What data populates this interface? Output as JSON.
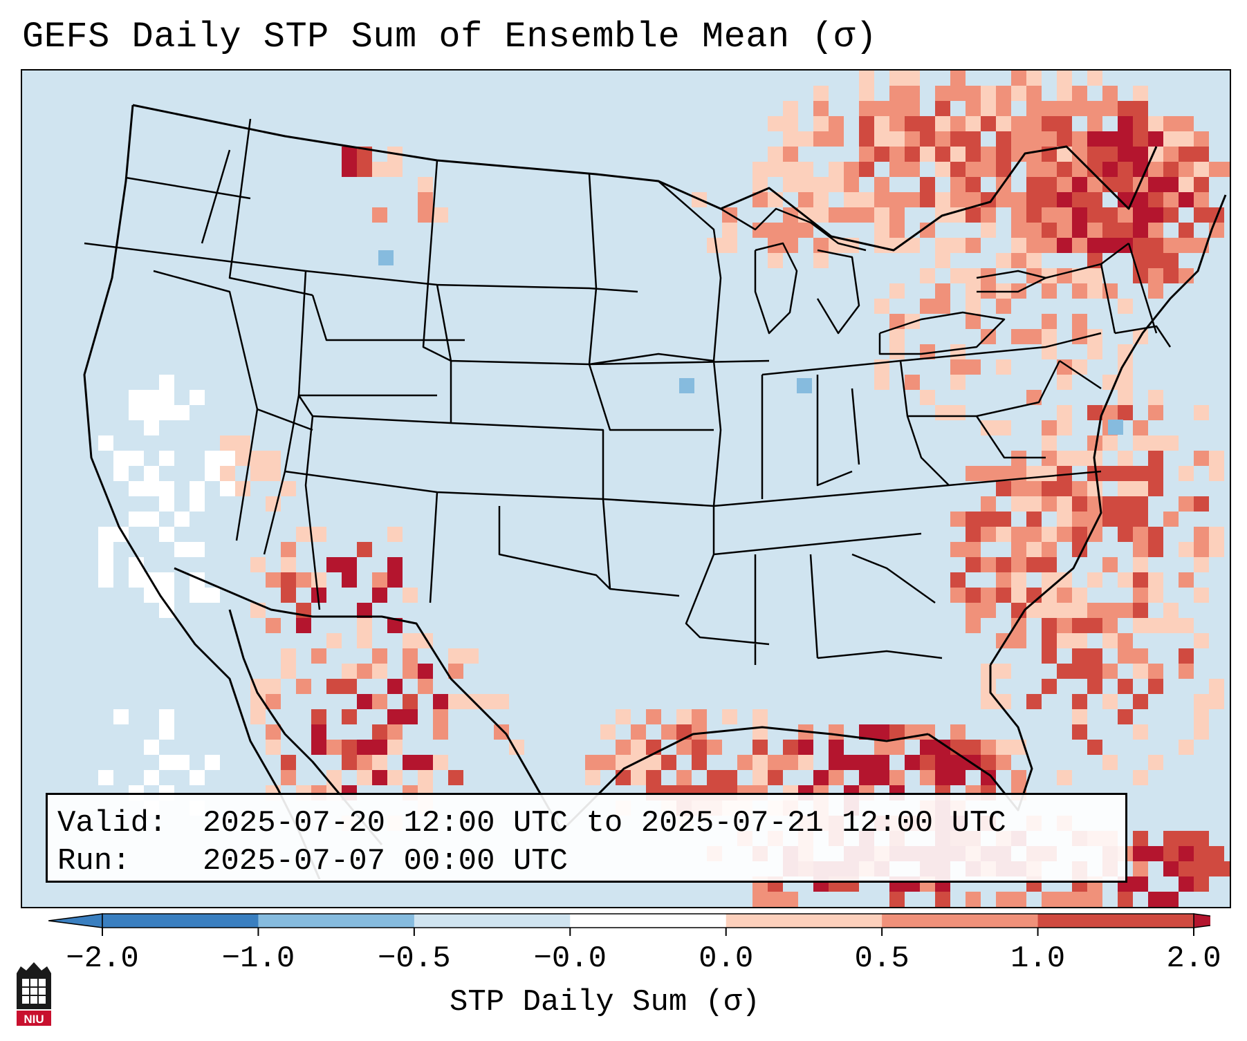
{
  "title": "GEFS Daily STP Sum of Ensemble Mean (σ)",
  "info": {
    "valid_label": "Valid:",
    "valid_value": "2025-07-20 12:00 UTC to 2025-07-21 12:00 UTC",
    "run_label": "Run:",
    "run_value": "2025-07-07 00:00 UTC"
  },
  "colorbar": {
    "label": "STP Daily Sum (σ)",
    "ticks": [
      "−2.0",
      "−1.0",
      "−0.5",
      "−0.0",
      "0.0",
      "0.5",
      "1.0",
      "2.0"
    ],
    "bin_colors": [
      "#3a7fc0",
      "#86bbde",
      "#d0e4f0",
      "#ffffff",
      "#fcd0bc",
      "#f0917a",
      "#d04a40",
      "#b4152e"
    ],
    "extend": "both"
  },
  "logo": {
    "text": "NIU"
  },
  "map": {
    "region": "Continental United States",
    "background_color": "#d0e4f0",
    "anomaly_regions": [
      {
        "area": "Ontario / Quebec / New England",
        "category": "0.5 to 2.0"
      },
      {
        "area": "Gulf of Mexico",
        "category": "1.0 to 2.0"
      },
      {
        "area": "Desert Southwest / Mexico",
        "category": "0.0 to 2.0"
      },
      {
        "area": "Western Atlantic",
        "category": "0.0 to 1.0"
      },
      {
        "area": "Pacific offshore",
        "category": "-0.0 to 0.0"
      }
    ]
  }
}
